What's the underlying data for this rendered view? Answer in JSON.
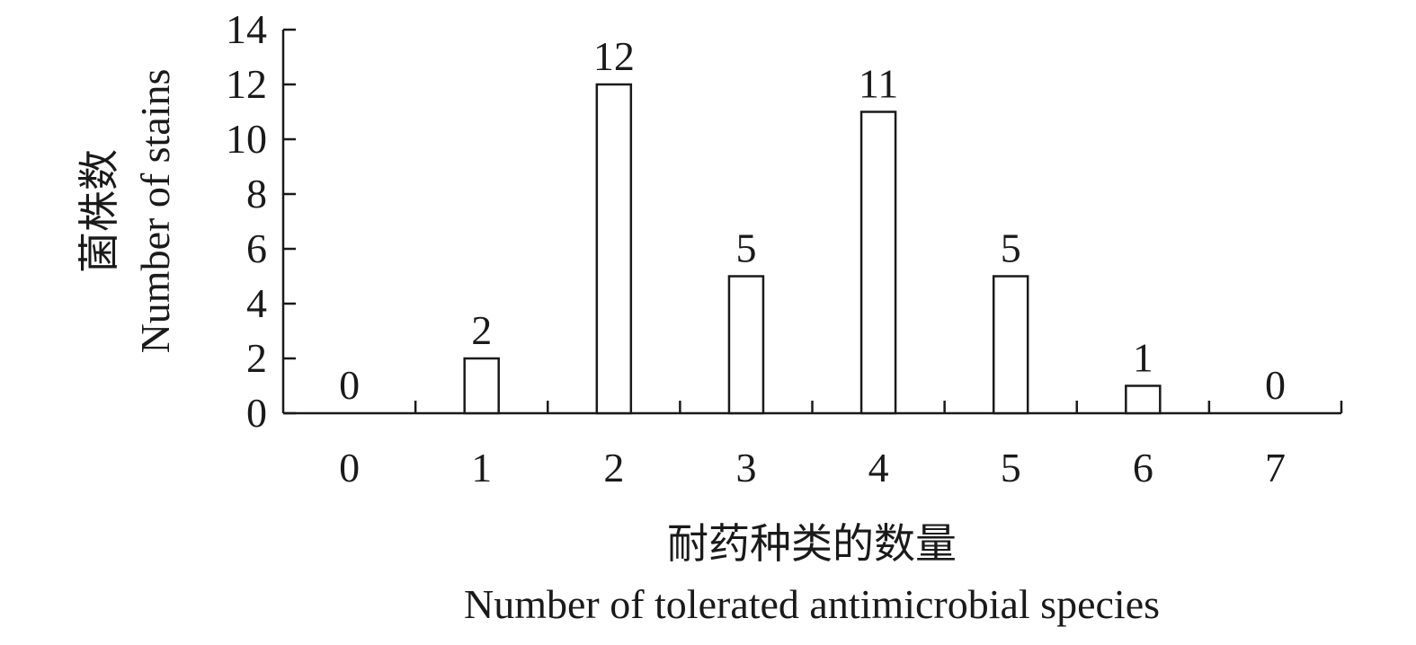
{
  "chart_data": {
    "type": "bar",
    "categories": [
      "0",
      "1",
      "2",
      "3",
      "4",
      "5",
      "6",
      "7"
    ],
    "values": [
      0,
      2,
      12,
      5,
      11,
      5,
      1,
      0
    ],
    "data_labels": [
      "0",
      "2",
      "12",
      "5",
      "11",
      "5",
      "1",
      "0"
    ],
    "title": "",
    "xlabel_cn": "耐药种类的数量",
    "xlabel": "Number of tolerated antimicrobial species",
    "ylabel_cn": "菌株数",
    "ylabel": "Number of stains",
    "ylim": [
      0,
      14
    ],
    "yticks": [
      "0",
      "2",
      "4",
      "6",
      "8",
      "10",
      "12",
      "14"
    ],
    "grid": false,
    "legend": "none",
    "bar_fill": "#ffffff",
    "bar_stroke": "#1a1a1a",
    "axis_color": "#1a1a1a"
  }
}
